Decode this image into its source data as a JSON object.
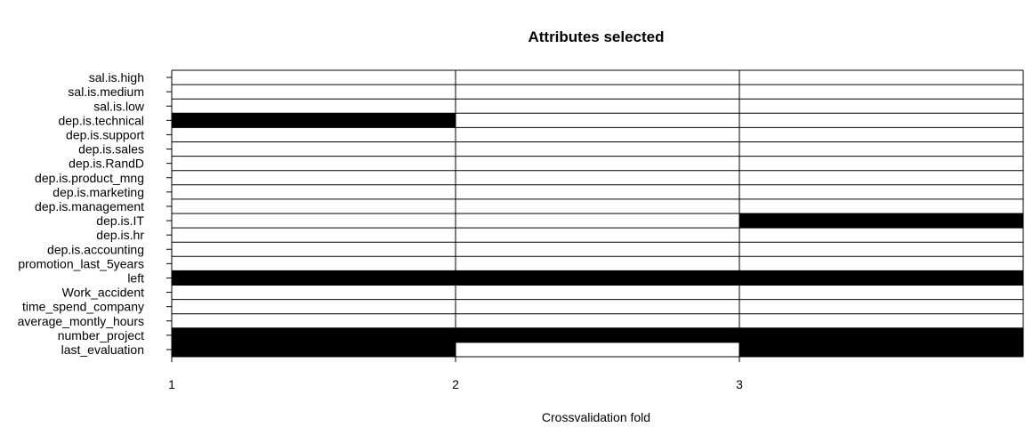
{
  "chart_data": {
    "type": "heatmap",
    "title": "Attributes selected",
    "xlabel": "Crossvalidation fold",
    "ylabel": "",
    "x_ticks": [
      "1",
      "2",
      "3"
    ],
    "folds": [
      1,
      2,
      3
    ],
    "attributes": [
      "sal.is.high",
      "sal.is.medium",
      "sal.is.low",
      "dep.is.technical",
      "dep.is.support",
      "dep.is.sales",
      "dep.is.RandD",
      "dep.is.product_mng",
      "dep.is.marketing",
      "dep.is.management",
      "dep.is.IT",
      "dep.is.hr",
      "dep.is.accounting",
      "promotion_last_5years",
      "left",
      "Work_accident",
      "time_spend_company",
      "average_montly_hours",
      "number_project",
      "last_evaluation"
    ],
    "selected": [
      [
        0,
        0,
        0
      ],
      [
        0,
        0,
        0
      ],
      [
        0,
        0,
        0
      ],
      [
        1,
        0,
        0
      ],
      [
        0,
        0,
        0
      ],
      [
        0,
        0,
        0
      ],
      [
        0,
        0,
        0
      ],
      [
        0,
        0,
        0
      ],
      [
        0,
        0,
        0
      ],
      [
        0,
        0,
        0
      ],
      [
        0,
        0,
        1
      ],
      [
        0,
        0,
        0
      ],
      [
        0,
        0,
        0
      ],
      [
        0,
        0,
        0
      ],
      [
        1,
        1,
        1
      ],
      [
        0,
        0,
        0
      ],
      [
        0,
        0,
        0
      ],
      [
        0,
        0,
        0
      ],
      [
        1,
        1,
        1
      ],
      [
        1,
        0,
        1
      ]
    ],
    "colors": {
      "selected": "#000000",
      "not_selected": "#ffffff",
      "grid": "#000000"
    }
  }
}
